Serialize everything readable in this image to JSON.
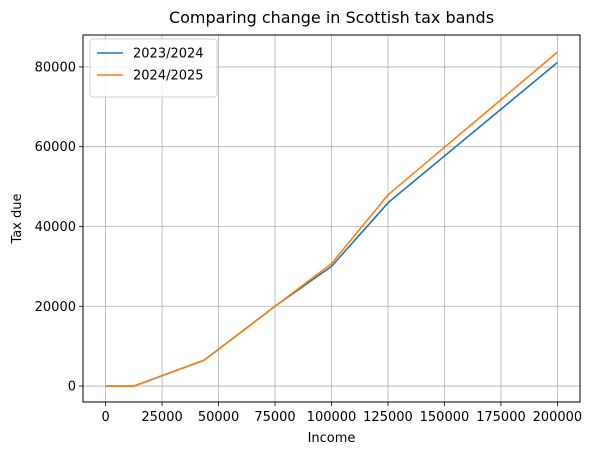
{
  "chart_data": {
    "type": "line",
    "title": "Comparing change in Scottish tax bands",
    "xlabel": "Income",
    "ylabel": "Tax due",
    "xlim": [
      -10000,
      210000
    ],
    "ylim": [
      -4000,
      88000
    ],
    "xticks": [
      0,
      25000,
      50000,
      75000,
      100000,
      125000,
      150000,
      175000,
      200000
    ],
    "yticks": [
      0,
      20000,
      40000,
      60000,
      80000
    ],
    "grid": true,
    "legend_position": "top-left",
    "series": [
      {
        "name": "2023/2024",
        "color": "#1f77b4",
        "x": [
          0,
          12570,
          43662,
          75000,
          100000,
          125140,
          200000
        ],
        "y": [
          0,
          0,
          6500,
          20000,
          30000,
          46000,
          81100
        ]
      },
      {
        "name": "2024/2025",
        "color": "#ff7f0e",
        "x": [
          0,
          12570,
          43662,
          75000,
          100000,
          125140,
          200000
        ],
        "y": [
          0,
          0,
          6500,
          20000,
          30700,
          48000,
          83700
        ]
      }
    ]
  }
}
